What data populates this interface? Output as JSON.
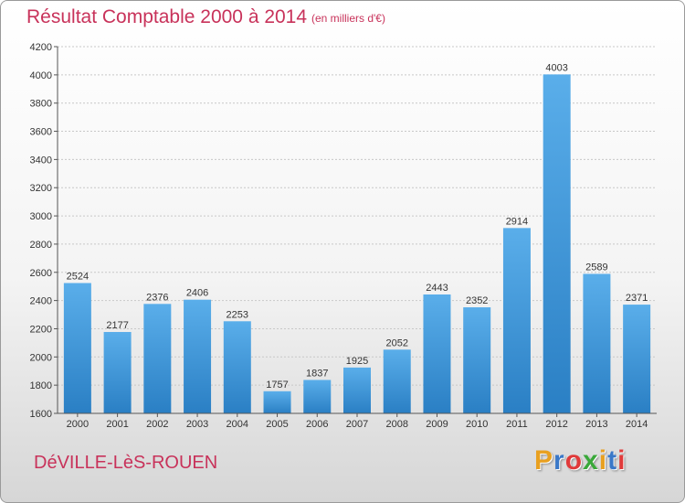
{
  "chart_data": {
    "type": "bar",
    "title": "Résultat Comptable 2000 à 2014",
    "subtitle": "(en milliers d'€)",
    "categories": [
      "2000",
      "2001",
      "2002",
      "2003",
      "2004",
      "2005",
      "2006",
      "2007",
      "2008",
      "2009",
      "2010",
      "2011",
      "2012",
      "2013",
      "2014"
    ],
    "values": [
      2524,
      2177,
      2376,
      2406,
      2253,
      1757,
      1837,
      1925,
      2052,
      2443,
      2352,
      2914,
      4003,
      2589,
      2371
    ],
    "ylim": [
      1600,
      4200
    ],
    "yticks": [
      1600,
      1800,
      2000,
      2200,
      2400,
      2600,
      2800,
      3000,
      3200,
      3400,
      3600,
      3800,
      4000,
      4200
    ],
    "grid": true,
    "bar_color_top": "#5aaeea",
    "bar_color_bottom": "#2a7fc4"
  },
  "footer": {
    "town": "DéVILLE-LèS-ROUEN",
    "logo_letters": [
      {
        "char": "P",
        "color": "#e8a020"
      },
      {
        "char": "r",
        "color": "#3a78c8"
      },
      {
        "char": "o",
        "color": "#e03a3a"
      },
      {
        "char": "x",
        "color": "#3aa83a"
      },
      {
        "char": "i",
        "color": "#e8a020"
      },
      {
        "char": "t",
        "color": "#3a78c8"
      },
      {
        "char": "i",
        "color": "#e03a3a"
      }
    ]
  }
}
